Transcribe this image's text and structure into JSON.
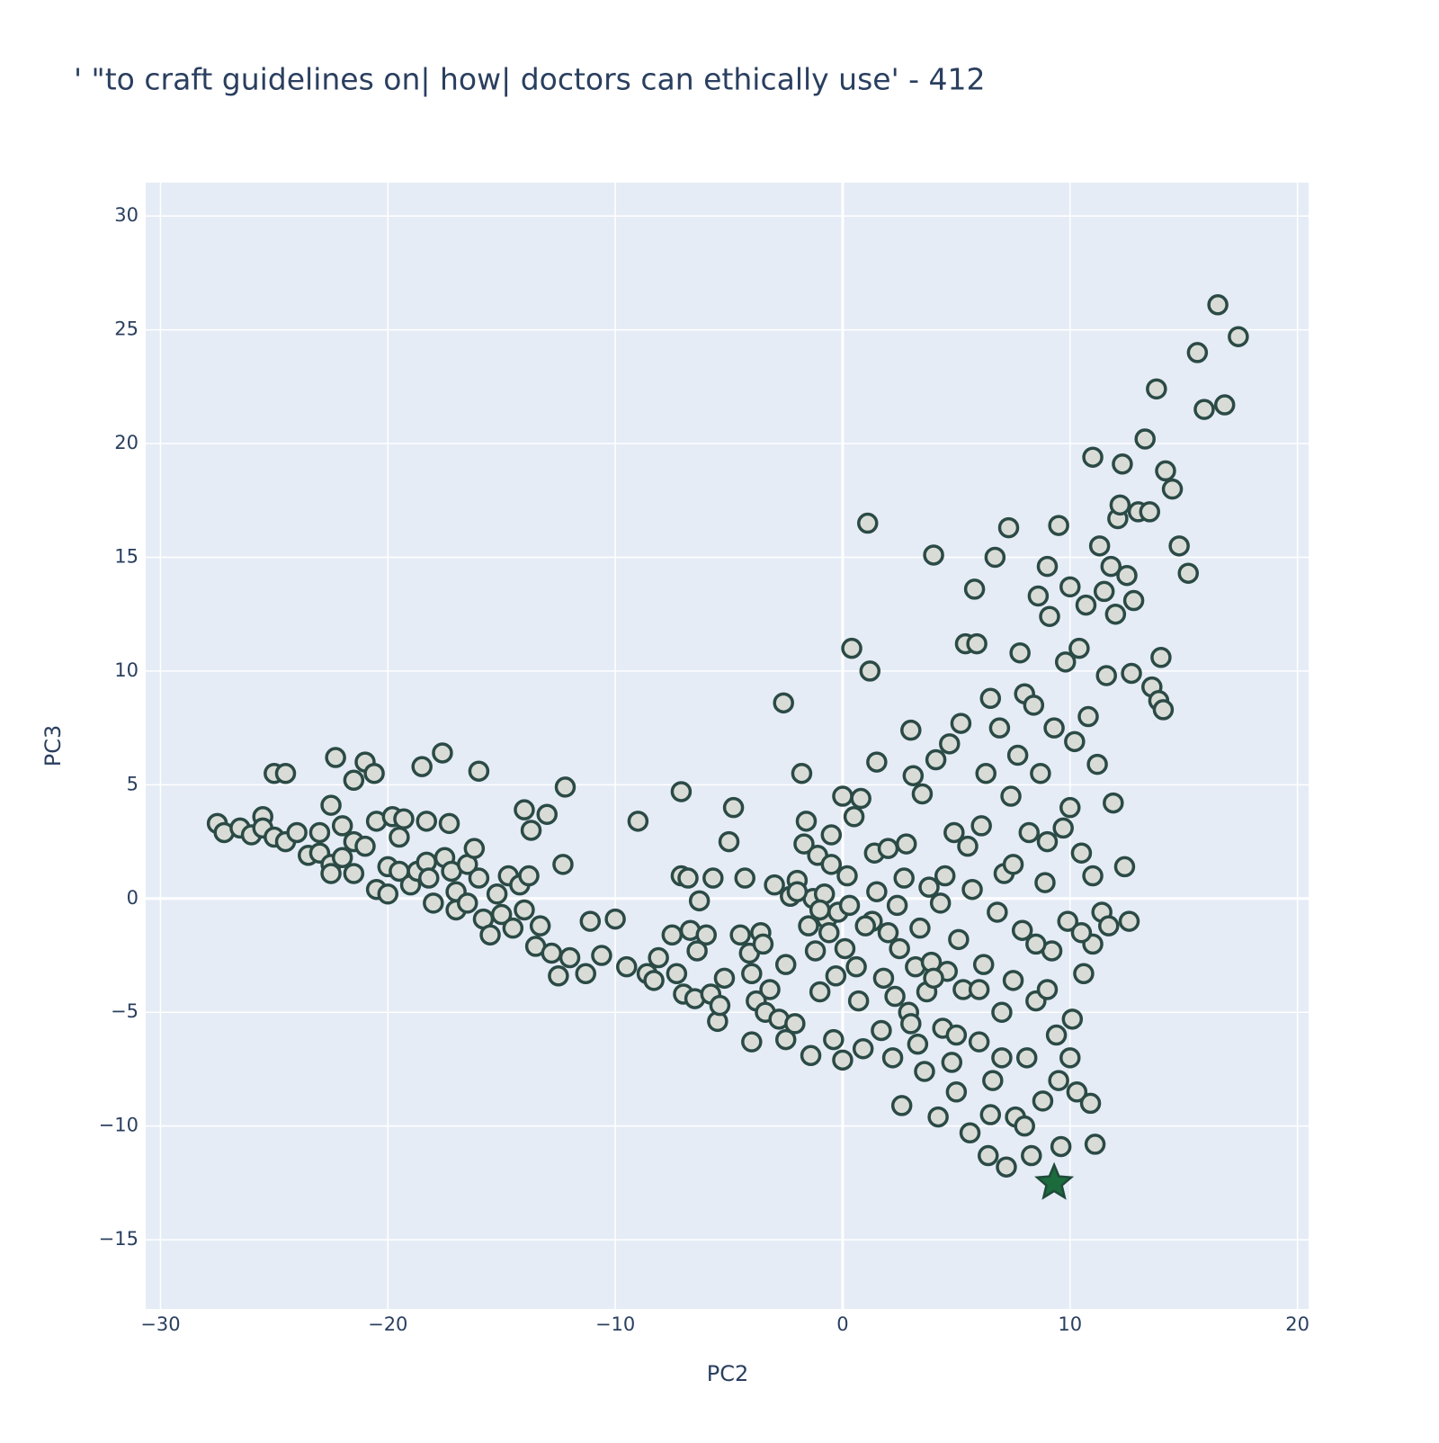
{
  "chart_data": {
    "type": "scatter",
    "title": "' \"to craft guidelines on| how| doctors can ethically use' - 412",
    "x_label": "PC2",
    "y_label": "PC3",
    "xlim": [
      -30.65,
      20.49
    ],
    "ylim": [
      -18.04,
      31.47
    ],
    "xticks": [
      {
        "value": -30,
        "label": "−30"
      },
      {
        "value": -20,
        "label": "−20"
      },
      {
        "value": -10,
        "label": "−10"
      },
      0,
      10,
      20
    ],
    "yticks": [
      {
        "value": -15,
        "label": "−15"
      },
      {
        "value": -10,
        "label": "−10"
      },
      {
        "value": -5,
        "label": "−5"
      },
      0,
      5,
      10,
      15,
      20,
      25,
      30
    ],
    "grid": true,
    "background": "#e5ecf6",
    "series": [
      {
        "marker": "circle",
        "color": "#d9dcd6",
        "edge_color": "#2b4a45",
        "x": [
          -27.5,
          -27.2,
          -26.5,
          -26,
          -25.5,
          -25.5,
          -25,
          -24.5,
          -25,
          -24.5,
          -24,
          -23.5,
          -23,
          -23,
          -22.5,
          -22.3,
          -22.5,
          -22.5,
          -22,
          -22,
          -21.5,
          -21.5,
          -21.5,
          -21,
          -20.6,
          -21,
          -20.5,
          -20.5,
          -20,
          -20,
          -19.8,
          -19.5,
          -19.3,
          -19.5,
          -19,
          -18.7,
          -18.5,
          -18.3,
          -18.3,
          -18.2,
          -18,
          -17.6,
          -17.5,
          -17.3,
          -17.2,
          -17,
          -17,
          -16.5,
          -16.5,
          -16.2,
          -16,
          -16,
          -15.8,
          -15.5,
          -15.2,
          -15,
          -14.7,
          -14.5,
          -14.2,
          -14,
          -14,
          -13.8,
          -13.7,
          -13.5,
          -13.3,
          -13,
          -12.8,
          -12.5,
          -12.3,
          -12.2,
          -12,
          -11.3,
          -11.1,
          -10.6,
          -10,
          -9.5,
          -9,
          -8.6,
          -8.3,
          -8.1,
          -7.5,
          -7.3,
          -7.1,
          -7.1,
          -7,
          -6.8,
          -6.7,
          -6.5,
          -6.4,
          -6.3,
          -6,
          -5.8,
          -5.7,
          -5.5,
          -5.4,
          -5.2,
          -5,
          -4.8,
          -4.5,
          -4.3,
          -4.1,
          -4,
          -4,
          -3.8,
          -3.6,
          -3.5,
          -3.4,
          -3.2,
          -3,
          -2.8,
          -2.6,
          -2.5,
          -2.5,
          -2.3,
          -2.1,
          -2,
          -1.8,
          -1.7,
          -1.6,
          -1.5,
          -1.4,
          -1.3,
          -1.2,
          -1.1,
          -1,
          -0.8,
          -0.7,
          -0.6,
          -0.5,
          -0.4,
          -0.3,
          -0.2,
          0,
          0,
          0.1,
          0.2,
          0.3,
          0.4,
          0.5,
          0.6,
          0.7,
          0.8,
          0.9,
          1.1,
          1.2,
          1.3,
          1.4,
          1.5,
          1.5,
          1.7,
          1.8,
          2,
          2,
          2.2,
          2.3,
          2.4,
          2.5,
          2.6,
          2.7,
          2.8,
          2.9,
          3,
          3.1,
          3.2,
          3.3,
          3.4,
          3.5,
          3.6,
          3.7,
          3.8,
          3.9,
          4,
          4.1,
          4.2,
          4.3,
          4.4,
          4.5,
          4.6,
          4.7,
          4.8,
          4.9,
          5,
          5.1,
          5.2,
          5.3,
          5.4,
          5.5,
          5.6,
          5.7,
          5.8,
          5.9,
          6,
          6.1,
          6.2,
          6.3,
          6.4,
          6.5,
          6.6,
          6.7,
          6.8,
          6.9,
          7,
          7.1,
          7.2,
          7.3,
          7.4,
          7.5,
          7.6,
          7.7,
          7.8,
          7.9,
          8,
          8.1,
          8.2,
          8.3,
          8.4,
          8.5,
          8.6,
          8.7,
          8.8,
          8.9,
          9,
          9.1,
          9.2,
          9.3,
          9.4,
          9.5,
          9.6,
          9.7,
          9.8,
          9.9,
          10,
          10.1,
          10.2,
          10.3,
          10.4,
          10.5,
          10.6,
          10.7,
          10.8,
          10.9,
          11,
          11.1,
          11.2,
          11.3,
          11.4,
          11.5,
          11.6,
          11.7,
          11.8,
          11.9,
          12,
          12.1,
          12.2,
          12.3,
          12.4,
          12.5,
          12.6,
          12.7,
          12.8,
          13,
          13.3,
          13.5,
          13.6,
          13.8,
          13.9,
          14,
          14.1,
          14.2,
          14.5,
          14.8,
          15.2,
          15.6,
          15.9,
          16.5,
          16.8,
          17.4,
          8.5,
          9,
          7,
          6,
          5,
          8,
          10,
          9.5,
          6.5,
          7.5,
          9,
          10,
          11,
          11,
          10.5,
          -1,
          -2,
          -0.5,
          1,
          3,
          4
        ],
        "y": [
          3.3,
          2.9,
          3.1,
          2.8,
          3.6,
          3.1,
          5.5,
          5.5,
          2.7,
          2.5,
          2.9,
          1.9,
          2.0,
          2.9,
          4.1,
          6.2,
          1.5,
          1.1,
          3.2,
          1.8,
          5.2,
          2.5,
          1.1,
          6.0,
          5.5,
          2.3,
          3.4,
          0.4,
          1.4,
          0.2,
          3.6,
          2.7,
          3.5,
          1.2,
          0.6,
          1.2,
          5.8,
          3.4,
          1.6,
          0.9,
          -0.2,
          6.4,
          1.8,
          3.3,
          1.2,
          0.3,
          -0.5,
          1.5,
          -0.2,
          2.2,
          5.6,
          0.9,
          -0.9,
          -1.6,
          0.2,
          -0.7,
          1.0,
          -1.3,
          0.6,
          -0.5,
          3.9,
          1.0,
          3.0,
          -2.1,
          -1.2,
          3.7,
          -2.4,
          -3.4,
          1.5,
          4.9,
          -2.6,
          -3.3,
          -1.0,
          -2.5,
          -0.9,
          -3.0,
          3.4,
          -3.3,
          -3.6,
          -2.6,
          -1.6,
          -3.3,
          4.7,
          1.0,
          -4.2,
          0.9,
          -1.4,
          -4.4,
          -2.3,
          -0.1,
          -1.6,
          -4.2,
          0.9,
          -5.4,
          -4.7,
          -3.5,
          2.5,
          4.0,
          -1.6,
          0.9,
          -2.4,
          -3.3,
          -6.3,
          -4.5,
          -1.5,
          -2.0,
          -5.0,
          -4.0,
          0.6,
          -5.3,
          8.6,
          -6.2,
          -2.9,
          0.1,
          -5.5,
          0.8,
          5.5,
          2.4,
          3.4,
          -1.2,
          -6.9,
          0.0,
          -2.3,
          1.9,
          -4.1,
          0.2,
          -0.9,
          -1.5,
          2.8,
          -6.2,
          -3.4,
          -0.6,
          4.5,
          -7.1,
          -2.2,
          1.0,
          -0.3,
          11.0,
          3.6,
          -3.0,
          -4.5,
          4.4,
          -6.6,
          16.5,
          10.0,
          -1.0,
          2.0,
          0.3,
          6.0,
          -5.8,
          -3.5,
          2.2,
          -1.5,
          -7.0,
          -4.3,
          -0.3,
          -2.2,
          -9.1,
          0.9,
          2.4,
          -5.0,
          7.4,
          5.4,
          -3.0,
          -6.4,
          -1.3,
          4.6,
          -7.6,
          -4.1,
          0.5,
          -2.8,
          15.1,
          6.1,
          -9.6,
          -0.2,
          -5.7,
          1.0,
          -3.2,
          6.8,
          -7.2,
          2.9,
          -8.5,
          -1.8,
          7.7,
          -4.0,
          11.2,
          2.3,
          -10.3,
          0.4,
          13.6,
          11.2,
          -6.3,
          3.2,
          -2.9,
          5.5,
          -11.3,
          8.8,
          -8.0,
          15.0,
          -0.6,
          7.5,
          -5.0,
          1.1,
          -11.8,
          16.3,
          4.5,
          -3.6,
          -9.6,
          6.3,
          10.8,
          -1.4,
          9.0,
          -7.0,
          2.9,
          -11.3,
          8.5,
          -4.5,
          13.3,
          5.5,
          -8.9,
          0.7,
          14.6,
          12.4,
          -2.3,
          7.5,
          -6.0,
          16.4,
          -10.9,
          3.1,
          10.4,
          -1.0,
          13.7,
          -5.3,
          6.9,
          -8.5,
          11.0,
          2.0,
          -3.3,
          12.9,
          8.0,
          -9.0,
          19.4,
          -10.8,
          5.9,
          15.5,
          -0.6,
          13.5,
          9.8,
          -1.2,
          14.6,
          4.2,
          12.5,
          16.7,
          17.3,
          19.1,
          1.4,
          14.2,
          -1.0,
          9.9,
          13.1,
          17.0,
          20.2,
          17.0,
          9.3,
          22.4,
          8.7,
          10.6,
          8.3,
          18.8,
          18.0,
          15.5,
          14.3,
          24.0,
          21.5,
          26.1,
          21.7,
          24.7,
          -2,
          -4,
          -7,
          -4,
          -6,
          -10,
          -7,
          -8,
          -9.5,
          1.5,
          2.5,
          4,
          -2,
          1,
          -1.5,
          -0.5,
          0.3,
          1.5,
          -1.2,
          -5.5,
          -3.5
        ]
      },
      {
        "marker": "star",
        "color": "#1b6b3d",
        "edge_color": "#1f4a3a",
        "x": [
          9.3
        ],
        "y": [
          -12.5
        ]
      }
    ]
  }
}
